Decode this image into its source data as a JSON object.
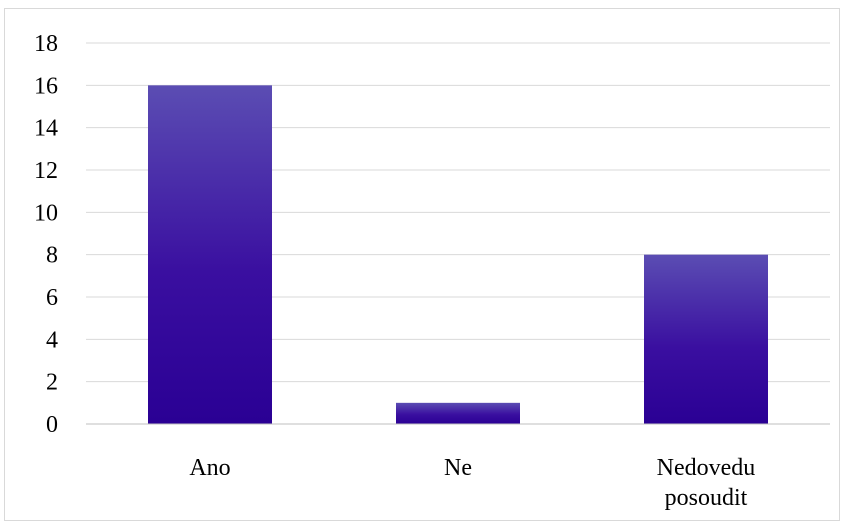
{
  "chart_data": {
    "type": "bar",
    "title": "",
    "xlabel": "",
    "ylabel": "",
    "categories": [
      [
        "Ano"
      ],
      [
        "Ne"
      ],
      [
        "Nedovedu",
        "posoudit"
      ]
    ],
    "values": [
      16,
      1,
      8
    ],
    "ylim": [
      0,
      18
    ],
    "yticks": [
      "0",
      "2",
      "4",
      "6",
      "8",
      "10",
      "12",
      "14",
      "16",
      "18"
    ],
    "grid": true,
    "legend": "none",
    "colors": {
      "bar_top": "#5b4db3",
      "bar_bottom": "#2a0094",
      "grid": "#d9d9d9",
      "axis": "#bfbfbf"
    }
  }
}
